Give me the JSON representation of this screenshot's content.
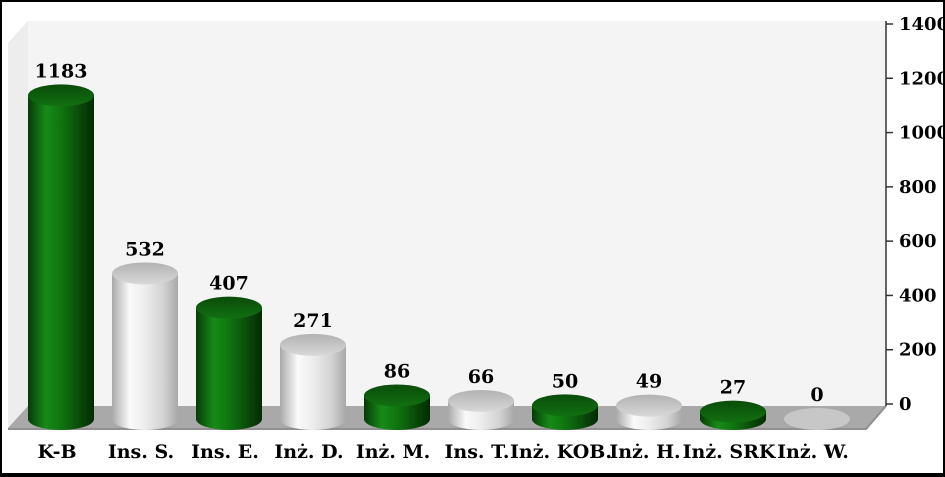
{
  "chart_data": {
    "type": "bar",
    "subtype": "3d-cylinder",
    "title": "",
    "xlabel": "",
    "ylabel": "",
    "categories": [
      "K-B",
      "Ins. S.",
      "Ins. E.",
      "Inż. D.",
      "Inż. M.",
      "Ins. T.",
      "Inż. KOB.",
      "Inż. H.",
      "Inż. SRK",
      "Inż. W."
    ],
    "values": [
      1183,
      532,
      407,
      271,
      86,
      66,
      50,
      49,
      27,
      0
    ],
    "data_labels": [
      "1183",
      "532",
      "407",
      "271",
      "86",
      "66",
      "50",
      "49",
      "27",
      "0"
    ],
    "bar_color_sequence": [
      "green",
      "silver",
      "green",
      "silver",
      "green",
      "silver",
      "green",
      "silver",
      "green",
      "silver"
    ],
    "yaxis": {
      "side": "right",
      "min": 0,
      "max": 1400,
      "step": 200,
      "tick_labels": [
        "0",
        "200",
        "400",
        "600",
        "800",
        "1000",
        "1200",
        "1400"
      ]
    },
    "grid": false,
    "legend": null,
    "colors": {
      "green_mid": "#0f750f",
      "green_dark": "#083908",
      "green_highlight": "#178a17",
      "green_top_a": "#0a4c0a",
      "green_top_b": "#117011",
      "silver_mid": "#ededed",
      "silver_dark": "#a8a8a8",
      "silver_highlight": "#fafafa",
      "silver_top_a": "#b2b2b2",
      "silver_top_b": "#d8d8d8",
      "zero_ellipse": "#c7c7c7",
      "back_wall": "#f4f4f4",
      "side_wall": "#ededed",
      "floor": "#a9a9a9",
      "floor_edge": "#909090",
      "axis": "#333333",
      "text": "#000000",
      "frame": "#000000",
      "background": "#ffffff"
    }
  }
}
